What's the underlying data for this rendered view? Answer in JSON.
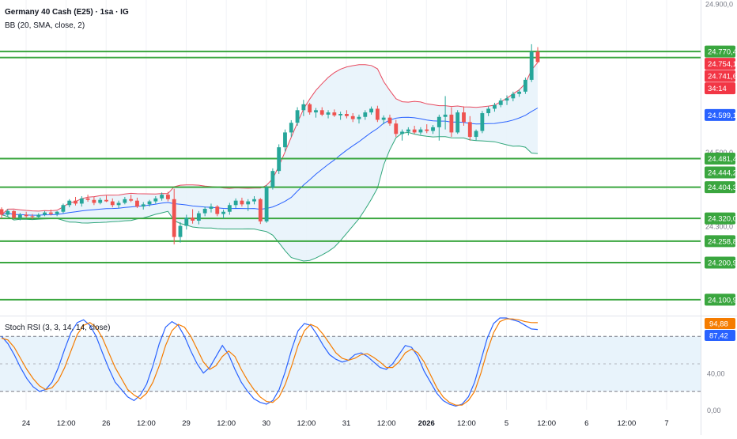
{
  "header": {
    "symbol_title": "Germany 40 Cash (E25) · 1sa · IG",
    "bb_label": "BB (20, SMA, close, 2)",
    "stoch_label": "Stoch RSI (3, 3, 14, 14, close)"
  },
  "colors": {
    "up": "#26a69a",
    "down": "#ef5350",
    "bb_upper": "#e84a5f",
    "bb_lower": "#2fa67a",
    "bb_basis": "#2962ff",
    "bb_fill": "#e8f3fb",
    "level_line": "#3aa63f",
    "rsi_k": "#2962ff",
    "rsi_d": "#f57c00",
    "rsi_band": "#e8f3fb"
  },
  "chart_data": [
    {
      "type": "candlestick",
      "title": "Germany 40 Cash (E25) · 1sa · IG",
      "ylim": [
        24060,
        24905
      ],
      "y_tick_labels": [
        "24.900,0",
        "24.500,0",
        "24.300,0"
      ],
      "x_tick_labels": [
        "24",
        "12:00",
        "26",
        "12:00",
        "29",
        "12:00",
        "30",
        "12:00",
        "31",
        "12:00",
        "2026",
        "12:00",
        "5",
        "12:00",
        "6",
        "12:00",
        "7"
      ],
      "horizontal_levels": [
        24770.4,
        24754.1,
        24481.4,
        24404.3,
        24320.0,
        24258.8,
        24200.9,
        24100.9
      ],
      "price_labels": [
        {
          "text": "24.770,4",
          "color": "#3aa63f"
        },
        {
          "text": "24.754,1",
          "color": "#f23645"
        },
        {
          "text": "24.741,6",
          "color": "#f23645"
        },
        {
          "text": "34:14",
          "color": "#f23645"
        },
        {
          "text": "24.599,1",
          "color": "#2962ff"
        },
        {
          "text": "24.481,4",
          "color": "#3aa63f"
        },
        {
          "text": "24.444,2",
          "color": "#3aa63f"
        },
        {
          "text": "24.404,3",
          "color": "#3aa63f"
        },
        {
          "text": "24.320,0",
          "color": "#3aa63f"
        },
        {
          "text": "24.258,8",
          "color": "#3aa63f"
        },
        {
          "text": "24.200,9",
          "color": "#3aa63f"
        },
        {
          "text": "24.100,9",
          "color": "#3aa63f"
        }
      ],
      "series": [
        {
          "name": "BB (20, SMA, close, 2)",
          "kind": "bollinger",
          "upper_peak": 24670,
          "lower_trough": 24255,
          "last_basis": 24599.1,
          "last_lower": 24444.2
        }
      ],
      "candles": [
        [
          24345,
          24350,
          24320,
          24330
        ],
        [
          24330,
          24345,
          24325,
          24340
        ],
        [
          24340,
          24342,
          24318,
          24322
        ],
        [
          24322,
          24335,
          24315,
          24330
        ],
        [
          24330,
          24338,
          24322,
          24326
        ],
        [
          24326,
          24332,
          24318,
          24324
        ],
        [
          24324,
          24334,
          24320,
          24330
        ],
        [
          24330,
          24340,
          24326,
          24336
        ],
        [
          24336,
          24344,
          24328,
          24332
        ],
        [
          24332,
          24340,
          24326,
          24338
        ],
        [
          24338,
          24360,
          24334,
          24356
        ],
        [
          24356,
          24372,
          24350,
          24368
        ],
        [
          24368,
          24378,
          24355,
          24360
        ],
        [
          24360,
          24380,
          24352,
          24374
        ],
        [
          24374,
          24384,
          24365,
          24370
        ],
        [
          24370,
          24378,
          24356,
          24362
        ],
        [
          24362,
          24376,
          24358,
          24370
        ],
        [
          24370,
          24382,
          24364,
          24366
        ],
        [
          24366,
          24374,
          24350,
          24356
        ],
        [
          24356,
          24368,
          24348,
          24362
        ],
        [
          24362,
          24378,
          24358,
          24372
        ],
        [
          24372,
          24384,
          24364,
          24368
        ],
        [
          24368,
          24376,
          24348,
          24352
        ],
        [
          24352,
          24364,
          24344,
          24358
        ],
        [
          24358,
          24370,
          24352,
          24366
        ],
        [
          24366,
          24380,
          24360,
          24374
        ],
        [
          24374,
          24390,
          24368,
          24384
        ],
        [
          24384,
          24392,
          24366,
          24372
        ],
        [
          24372,
          24400,
          24250,
          24270
        ],
        [
          24270,
          24310,
          24255,
          24300
        ],
        [
          24300,
          24330,
          24290,
          24322
        ],
        [
          24322,
          24345,
          24306,
          24314
        ],
        [
          24314,
          24340,
          24304,
          24334
        ],
        [
          24334,
          24352,
          24326,
          24346
        ],
        [
          24346,
          24360,
          24336,
          24352
        ],
        [
          24352,
          24356,
          24326,
          24332
        ],
        [
          24332,
          24344,
          24320,
          24338
        ],
        [
          24338,
          24362,
          24330,
          24356
        ],
        [
          24356,
          24374,
          24348,
          24368
        ],
        [
          24368,
          24376,
          24352,
          24358
        ],
        [
          24358,
          24372,
          24340,
          24366
        ],
        [
          24366,
          24380,
          24358,
          24372
        ],
        [
          24372,
          24375,
          24305,
          24312
        ],
        [
          24312,
          24410,
          24308,
          24404
        ],
        [
          24404,
          24455,
          24398,
          24448
        ],
        [
          24448,
          24520,
          24440,
          24512
        ],
        [
          24512,
          24560,
          24500,
          24552
        ],
        [
          24552,
          24585,
          24540,
          24578
        ],
        [
          24578,
          24620,
          24570,
          24612
        ],
        [
          24612,
          24640,
          24596,
          24628
        ],
        [
          24628,
          24632,
          24600,
          24606
        ],
        [
          24606,
          24618,
          24592,
          24612
        ],
        [
          24612,
          24620,
          24596,
          24600
        ],
        [
          24600,
          24612,
          24590,
          24606
        ],
        [
          24606,
          24614,
          24594,
          24598
        ],
        [
          24598,
          24608,
          24586,
          24602
        ],
        [
          24602,
          24612,
          24590,
          24596
        ],
        [
          24596,
          24604,
          24580,
          24588
        ],
        [
          24588,
          24600,
          24576,
          24594
        ],
        [
          24594,
          24612,
          24586,
          24606
        ],
        [
          24606,
          24622,
          24600,
          24616
        ],
        [
          24616,
          24624,
          24580,
          24586
        ],
        [
          24586,
          24598,
          24574,
          24592
        ],
        [
          24592,
          24600,
          24570,
          24576
        ],
        [
          24576,
          24586,
          24540,
          24548
        ],
        [
          24548,
          24560,
          24530,
          24554
        ],
        [
          24554,
          24566,
          24544,
          24560
        ],
        [
          24560,
          24570,
          24548,
          24552
        ],
        [
          24552,
          24566,
          24546,
          24560
        ],
        [
          24560,
          24574,
          24550,
          24556
        ],
        [
          24556,
          24572,
          24548,
          24566
        ],
        [
          24566,
          24600,
          24530,
          24594
        ],
        [
          24594,
          24650,
          24560,
          24600
        ],
        [
          24600,
          24620,
          24540,
          24552
        ],
        [
          24552,
          24612,
          24548,
          24606
        ],
        [
          24606,
          24622,
          24570,
          24580
        ],
        [
          24580,
          24596,
          24530,
          24540
        ],
        [
          24540,
          24560,
          24530,
          24556
        ],
        [
          24556,
          24610,
          24550,
          24604
        ],
        [
          24604,
          24622,
          24596,
          24616
        ],
        [
          24616,
          24632,
          24608,
          24626
        ],
        [
          24626,
          24644,
          24620,
          24638
        ],
        [
          24638,
          24652,
          24626,
          24644
        ],
        [
          24644,
          24662,
          24636,
          24656
        ],
        [
          24656,
          24668,
          24648,
          24662
        ],
        [
          24662,
          24700,
          24656,
          24694
        ],
        [
          24694,
          24790,
          24688,
          24770
        ],
        [
          24770,
          24782,
          24740,
          24741.6
        ]
      ]
    },
    {
      "type": "line",
      "title": "Stoch RSI (3, 3, 14, 14, close)",
      "ylim": [
        0,
        100
      ],
      "y_tick_labels": [
        "80,00",
        "40,00",
        "0,00"
      ],
      "bands": [
        20,
        80
      ],
      "series": [
        {
          "name": "K",
          "last_value": 87.42,
          "label": "87,42",
          "values": [
            80,
            72,
            60,
            46,
            34,
            25,
            20,
            22,
            30,
            46,
            66,
            84,
            95,
            98,
            92,
            80,
            62,
            45,
            30,
            22,
            14,
            10,
            16,
            28,
            48,
            72,
            90,
            96,
            92,
            80,
            64,
            50,
            40,
            46,
            58,
            70,
            60,
            44,
            30,
            20,
            12,
            8,
            6,
            10,
            22,
            42,
            66,
            86,
            94,
            92,
            82,
            70,
            60,
            55,
            52,
            54,
            60,
            62,
            58,
            52,
            46,
            44,
            50,
            60,
            70,
            68,
            58,
            42,
            30,
            18,
            10,
            6,
            4,
            6,
            14,
            30,
            54,
            78,
            94,
            100,
            100,
            98,
            96,
            92,
            88,
            87.42
          ]
        },
        {
          "name": "D",
          "last_value": 94.88,
          "label": "94,88",
          "values": [
            78,
            76,
            68,
            56,
            44,
            34,
            26,
            22,
            24,
            32,
            46,
            64,
            82,
            92,
            95,
            90,
            78,
            62,
            46,
            34,
            22,
            16,
            12,
            18,
            30,
            48,
            70,
            86,
            93,
            90,
            80,
            66,
            52,
            44,
            48,
            58,
            64,
            58,
            44,
            32,
            22,
            14,
            9,
            8,
            14,
            28,
            48,
            70,
            86,
            93,
            90,
            82,
            72,
            62,
            56,
            54,
            56,
            60,
            61,
            57,
            52,
            46,
            46,
            52,
            62,
            66,
            62,
            52,
            38,
            24,
            14,
            8,
            5,
            5,
            10,
            20,
            40,
            64,
            84,
            96,
            99,
            99,
            98,
            96,
            95,
            94.88
          ]
        }
      ]
    }
  ]
}
